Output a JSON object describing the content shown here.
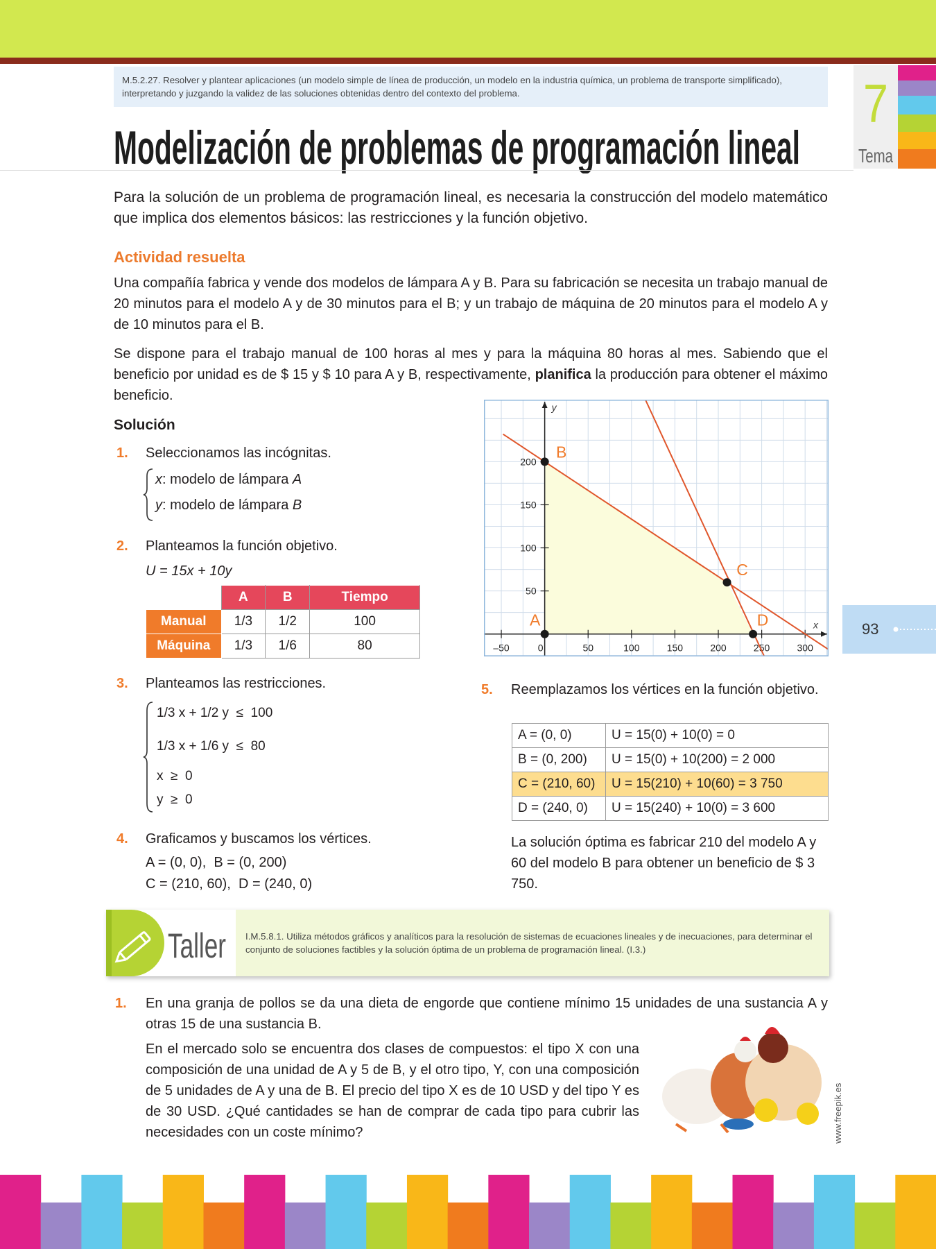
{
  "header": {
    "skill": "M.5.2.27. Resolver y plantear aplicaciones (un modelo simple de línea de producción, un modelo en la industria química, un problema de transporte simplificado), interpretando y juzgando la validez de las soluciones obtenidas dentro del contexto del problema.",
    "tema_number": "7",
    "tema_label": "Tema"
  },
  "title": "Modelización de problemas de programación lineal",
  "intro": "Para la solución de un problema de programación lineal, es necesaria la construcción del modelo matemático que implica dos elementos básicos: las restricciones y la función objetivo.",
  "activity": {
    "heading": "Actividad resuelta",
    "statement": "Una compañía fabrica y vende dos modelos de lámpara A y B. Para su fabricación se necesita un trabajo manual de 20 minutos para el modelo A  y de 30 minutos para el B; y un trabajo de máquina de 20 minutos para el modelo A y de 10 minutos para el B.",
    "task": [
      "Se dispone para el trabajo manual de 100 horas al mes y para la máquina 80 horas al mes. Sabiendo que el beneficio por unidad es de $ 15 y $ 10 para A y B,  respectivamente, ",
      "planifica",
      " la producción para obtener el máximo beneficio."
    ]
  },
  "solution": {
    "heading": "Solución",
    "steps": [
      {
        "number": "1.",
        "verb": "Seleccionamos",
        "text": " las incógnitas.",
        "unknowns": [
          {
            "var": "x",
            "desc": ": modelo de lámpara ",
            "model": "A"
          },
          {
            "var": "y",
            "desc": ": modelo de lámpara ",
            "model": "B"
          }
        ]
      },
      {
        "number": "2.",
        "verb": "Planteamos",
        "text": " la función objetivo.",
        "formula": "U = 15x + 10y",
        "table": {
          "header": [
            "A",
            "B",
            "Tiempo"
          ],
          "rows": [
            [
              "Manual",
              "1/3",
              "1/2",
              "100"
            ],
            [
              "Máquina",
              "1/3",
              "1/6",
              "80"
            ]
          ]
        }
      },
      {
        "number": "3.",
        "verb": "Planteamos",
        "text": " las restricciones.",
        "constraints": [
          "1/3 x + 1/2 y  ≤  100",
          "1/3 x + 1/6 y  ≤  80",
          "x  ≥  0",
          "y  ≥  0"
        ]
      },
      {
        "number": "4.",
        "verb": "Graficamos",
        "text": " y ",
        "verb2": "buscamos",
        "text2": " los vértices.",
        "vertices": [
          "A = (0, 0),  B = (0, 200)",
          "C = (210, 60),  D = (240, 0)"
        ]
      },
      {
        "number": "5.",
        "verb": "Reemplazamos",
        "text": " los vértices en la función objetivo.",
        "table": [
          [
            "A = (0, 0)",
            "U = 15(0) + 10(0) = 0"
          ],
          [
            "B = (0, 200)",
            "U = 15(0) + 10(200) = 2 000"
          ],
          [
            "C = (210, 60)",
            "U = 15(210) + 10(60) = 3 750"
          ],
          [
            "D = (240, 0)",
            "U = 15(240) + 10(0) = 3 600"
          ]
        ],
        "conclusion": "La solución óptima es fabricar 210 del modelo A y 60 del modelo B para obtener un beneficio de $ 3 750."
      }
    ]
  },
  "chart_data": {
    "type": "line",
    "xlabel": "x",
    "ylabel": "y",
    "xlim": [
      -70,
      327
    ],
    "ylim": [
      -26,
      272
    ],
    "xticks": [
      {
        "value": -50,
        "label": "–50"
      },
      0,
      50,
      100,
      150,
      200,
      250,
      300
    ],
    "yticks": [
      50,
      100,
      150,
      200
    ],
    "grid": true,
    "xgrid": [
      -50,
      -25,
      0,
      25,
      50,
      75,
      100,
      125,
      150,
      175,
      200,
      225,
      250,
      275,
      300,
      325
    ],
    "ygrid": [
      -25,
      0,
      25,
      50,
      75,
      100,
      125,
      150,
      175,
      200,
      225,
      250
    ],
    "series": [
      {
        "color": "#e0562b",
        "x": [
          -48,
          327
        ],
        "values": [
          232,
          -18
        ]
      },
      {
        "color": "#e0562b",
        "x": [
          116,
          253
        ],
        "values": [
          272,
          -26
        ]
      }
    ],
    "points": [
      {
        "label": "A",
        "x": 0,
        "y": 0
      },
      {
        "label": "B",
        "x": 0,
        "y": 200
      },
      {
        "label": "C",
        "x": 210,
        "y": 60
      },
      {
        "label": "D",
        "x": 240,
        "y": 0
      }
    ],
    "region_color": "#fbfcdc",
    "point_color": "#1a1a1a",
    "label_color": "#f07b2a"
  },
  "page_number": "93",
  "taller": {
    "title": "Taller",
    "indicator": "I.M.5.8.1. Utiliza métodos gráficos y analíticos para la resolución de sistemas de ecuaciones lineales y de inecuaciones, para determinar el conjunto de soluciones factibles y la solución óptima de un problema de programación lineal. (I.3.)"
  },
  "exercise": {
    "number": "1.",
    "paragraphs": [
      "En una granja de pollos se da una dieta de engorde que contiene mínimo 15 unidades de una sustancia A y otras 15 de una sustancia B.",
      "En el mercado solo se encuentra dos clases de compuestos: el tipo X con una composición de una unidad de A y 5 de B, y el otro tipo, Y, con una composición de 5 unidades de A y una de B. El precio del tipo X es de 10 USD y del tipo Y es de 30 USD. ¿Qué cantidades se han de comprar de cada tipo para cubrir las necesidades con un coste mínimo?"
    ]
  },
  "credit": "www.freepik.es"
}
